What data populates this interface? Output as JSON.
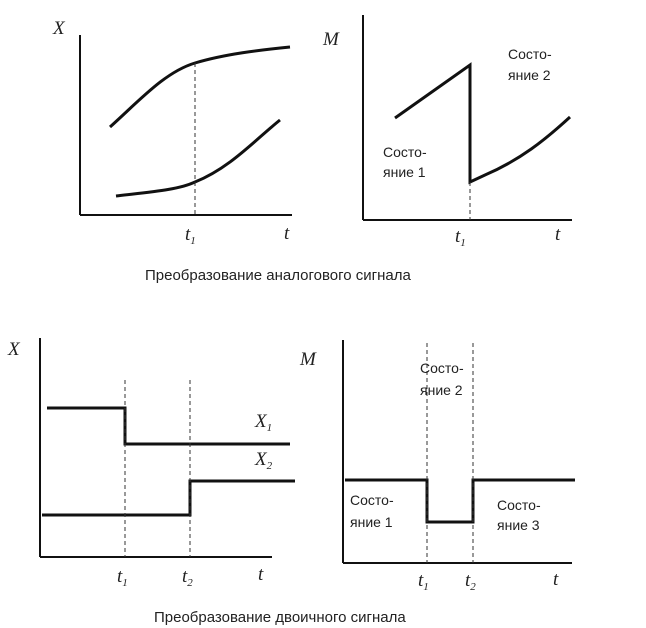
{
  "analog": {
    "caption": "Преобразование аналогового сигнала",
    "left": {
      "y_axis": "X",
      "x_axis": "t",
      "tick": "t",
      "tick_sub": "1"
    },
    "right": {
      "y_axis": "M",
      "x_axis": "t",
      "tick": "t",
      "tick_sub": "1",
      "state1": [
        "Состо-",
        "яние 1"
      ],
      "state2": [
        "Состо-",
        "яние 2"
      ]
    }
  },
  "binary": {
    "caption": "Преобразование двоичного сигнала",
    "left": {
      "y_axis": "X",
      "x_axis": "t",
      "tick1": "t",
      "tick1_sub": "1",
      "tick2": "t",
      "tick2_sub": "2",
      "x1": "X",
      "x1_sub": "1",
      "x2": "X",
      "x2_sub": "2"
    },
    "right": {
      "y_axis": "M",
      "x_axis": "t",
      "tick1": "t",
      "tick1_sub": "1",
      "tick2": "t",
      "tick2_sub": "2",
      "state1": [
        "Состо-",
        "яние 1"
      ],
      "state2": [
        "Состо-",
        "яние 2"
      ],
      "state3": [
        "Состо-",
        "яние 3"
      ]
    }
  }
}
